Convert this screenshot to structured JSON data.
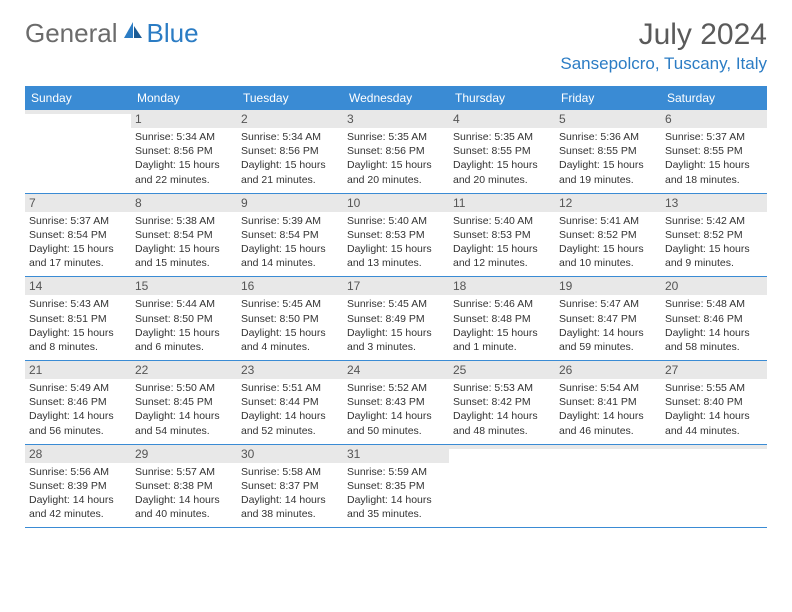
{
  "logo": {
    "text_general": "General",
    "text_blue": "Blue"
  },
  "header": {
    "month_year": "July 2024",
    "location": "Sansepolcro, Tuscany, Italy"
  },
  "day_names": [
    "Sunday",
    "Monday",
    "Tuesday",
    "Wednesday",
    "Thursday",
    "Friday",
    "Saturday"
  ],
  "colors": {
    "header_bar": "#3a8bd4",
    "accent_blue": "#2b7cc4",
    "day_num_bg": "#e8e8e8",
    "text": "#333333",
    "row_border": "#3a8bd4"
  },
  "calendar": {
    "type": "table",
    "columns": 7,
    "rows": 5,
    "weeks": [
      [
        {
          "num": "",
          "sunrise": "",
          "sunset": "",
          "daylight": ""
        },
        {
          "num": "1",
          "sunrise": "Sunrise: 5:34 AM",
          "sunset": "Sunset: 8:56 PM",
          "daylight": "Daylight: 15 hours and 22 minutes."
        },
        {
          "num": "2",
          "sunrise": "Sunrise: 5:34 AM",
          "sunset": "Sunset: 8:56 PM",
          "daylight": "Daylight: 15 hours and 21 minutes."
        },
        {
          "num": "3",
          "sunrise": "Sunrise: 5:35 AM",
          "sunset": "Sunset: 8:56 PM",
          "daylight": "Daylight: 15 hours and 20 minutes."
        },
        {
          "num": "4",
          "sunrise": "Sunrise: 5:35 AM",
          "sunset": "Sunset: 8:55 PM",
          "daylight": "Daylight: 15 hours and 20 minutes."
        },
        {
          "num": "5",
          "sunrise": "Sunrise: 5:36 AM",
          "sunset": "Sunset: 8:55 PM",
          "daylight": "Daylight: 15 hours and 19 minutes."
        },
        {
          "num": "6",
          "sunrise": "Sunrise: 5:37 AM",
          "sunset": "Sunset: 8:55 PM",
          "daylight": "Daylight: 15 hours and 18 minutes."
        }
      ],
      [
        {
          "num": "7",
          "sunrise": "Sunrise: 5:37 AM",
          "sunset": "Sunset: 8:54 PM",
          "daylight": "Daylight: 15 hours and 17 minutes."
        },
        {
          "num": "8",
          "sunrise": "Sunrise: 5:38 AM",
          "sunset": "Sunset: 8:54 PM",
          "daylight": "Daylight: 15 hours and 15 minutes."
        },
        {
          "num": "9",
          "sunrise": "Sunrise: 5:39 AM",
          "sunset": "Sunset: 8:54 PM",
          "daylight": "Daylight: 15 hours and 14 minutes."
        },
        {
          "num": "10",
          "sunrise": "Sunrise: 5:40 AM",
          "sunset": "Sunset: 8:53 PM",
          "daylight": "Daylight: 15 hours and 13 minutes."
        },
        {
          "num": "11",
          "sunrise": "Sunrise: 5:40 AM",
          "sunset": "Sunset: 8:53 PM",
          "daylight": "Daylight: 15 hours and 12 minutes."
        },
        {
          "num": "12",
          "sunrise": "Sunrise: 5:41 AM",
          "sunset": "Sunset: 8:52 PM",
          "daylight": "Daylight: 15 hours and 10 minutes."
        },
        {
          "num": "13",
          "sunrise": "Sunrise: 5:42 AM",
          "sunset": "Sunset: 8:52 PM",
          "daylight": "Daylight: 15 hours and 9 minutes."
        }
      ],
      [
        {
          "num": "14",
          "sunrise": "Sunrise: 5:43 AM",
          "sunset": "Sunset: 8:51 PM",
          "daylight": "Daylight: 15 hours and 8 minutes."
        },
        {
          "num": "15",
          "sunrise": "Sunrise: 5:44 AM",
          "sunset": "Sunset: 8:50 PM",
          "daylight": "Daylight: 15 hours and 6 minutes."
        },
        {
          "num": "16",
          "sunrise": "Sunrise: 5:45 AM",
          "sunset": "Sunset: 8:50 PM",
          "daylight": "Daylight: 15 hours and 4 minutes."
        },
        {
          "num": "17",
          "sunrise": "Sunrise: 5:45 AM",
          "sunset": "Sunset: 8:49 PM",
          "daylight": "Daylight: 15 hours and 3 minutes."
        },
        {
          "num": "18",
          "sunrise": "Sunrise: 5:46 AM",
          "sunset": "Sunset: 8:48 PM",
          "daylight": "Daylight: 15 hours and 1 minute."
        },
        {
          "num": "19",
          "sunrise": "Sunrise: 5:47 AM",
          "sunset": "Sunset: 8:47 PM",
          "daylight": "Daylight: 14 hours and 59 minutes."
        },
        {
          "num": "20",
          "sunrise": "Sunrise: 5:48 AM",
          "sunset": "Sunset: 8:46 PM",
          "daylight": "Daylight: 14 hours and 58 minutes."
        }
      ],
      [
        {
          "num": "21",
          "sunrise": "Sunrise: 5:49 AM",
          "sunset": "Sunset: 8:46 PM",
          "daylight": "Daylight: 14 hours and 56 minutes."
        },
        {
          "num": "22",
          "sunrise": "Sunrise: 5:50 AM",
          "sunset": "Sunset: 8:45 PM",
          "daylight": "Daylight: 14 hours and 54 minutes."
        },
        {
          "num": "23",
          "sunrise": "Sunrise: 5:51 AM",
          "sunset": "Sunset: 8:44 PM",
          "daylight": "Daylight: 14 hours and 52 minutes."
        },
        {
          "num": "24",
          "sunrise": "Sunrise: 5:52 AM",
          "sunset": "Sunset: 8:43 PM",
          "daylight": "Daylight: 14 hours and 50 minutes."
        },
        {
          "num": "25",
          "sunrise": "Sunrise: 5:53 AM",
          "sunset": "Sunset: 8:42 PM",
          "daylight": "Daylight: 14 hours and 48 minutes."
        },
        {
          "num": "26",
          "sunrise": "Sunrise: 5:54 AM",
          "sunset": "Sunset: 8:41 PM",
          "daylight": "Daylight: 14 hours and 46 minutes."
        },
        {
          "num": "27",
          "sunrise": "Sunrise: 5:55 AM",
          "sunset": "Sunset: 8:40 PM",
          "daylight": "Daylight: 14 hours and 44 minutes."
        }
      ],
      [
        {
          "num": "28",
          "sunrise": "Sunrise: 5:56 AM",
          "sunset": "Sunset: 8:39 PM",
          "daylight": "Daylight: 14 hours and 42 minutes."
        },
        {
          "num": "29",
          "sunrise": "Sunrise: 5:57 AM",
          "sunset": "Sunset: 8:38 PM",
          "daylight": "Daylight: 14 hours and 40 minutes."
        },
        {
          "num": "30",
          "sunrise": "Sunrise: 5:58 AM",
          "sunset": "Sunset: 8:37 PM",
          "daylight": "Daylight: 14 hours and 38 minutes."
        },
        {
          "num": "31",
          "sunrise": "Sunrise: 5:59 AM",
          "sunset": "Sunset: 8:35 PM",
          "daylight": "Daylight: 14 hours and 35 minutes."
        },
        {
          "num": "",
          "sunrise": "",
          "sunset": "",
          "daylight": ""
        },
        {
          "num": "",
          "sunrise": "",
          "sunset": "",
          "daylight": ""
        },
        {
          "num": "",
          "sunrise": "",
          "sunset": "",
          "daylight": ""
        }
      ]
    ]
  }
}
